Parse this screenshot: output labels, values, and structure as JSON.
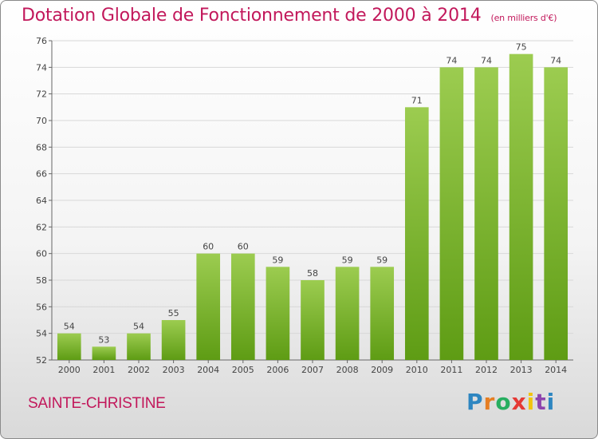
{
  "title": "Dotation Globale de Fonctionnement de 2000 à 2014",
  "subtitle": "(en milliers d'€)",
  "commune": "SAINTE-CHRISTINE",
  "logo": {
    "letters": [
      "P",
      "r",
      "o",
      "x",
      "i",
      "t",
      "i"
    ],
    "colors": [
      "#2e86c1",
      "#e67e22",
      "#27ae60",
      "#e53935",
      "#f1c40f",
      "#8e44ad",
      "#2e86c1"
    ]
  },
  "colors": {
    "title": "#c2185b",
    "bar_top": "#9ccc50",
    "bar_bottom": "#5e9c14",
    "grid": "#d8d8d8"
  },
  "chart_data": {
    "type": "bar",
    "title": "Dotation Globale de Fonctionnement de 2000 à 2014",
    "subtitle": "(en milliers d'€)",
    "categories": [
      "2000",
      "2001",
      "2002",
      "2003",
      "2004",
      "2005",
      "2006",
      "2007",
      "2008",
      "2009",
      "2010",
      "2011",
      "2012",
      "2013",
      "2014"
    ],
    "values": [
      54,
      53,
      54,
      55,
      60,
      60,
      59,
      58,
      59,
      59,
      71,
      74,
      74,
      75,
      74
    ],
    "ylim": [
      52,
      76
    ],
    "yticks": [
      52,
      54,
      56,
      58,
      60,
      62,
      64,
      66,
      68,
      70,
      72,
      74,
      76
    ],
    "xlabel": "",
    "ylabel": "",
    "grid": true,
    "legend": "none"
  }
}
